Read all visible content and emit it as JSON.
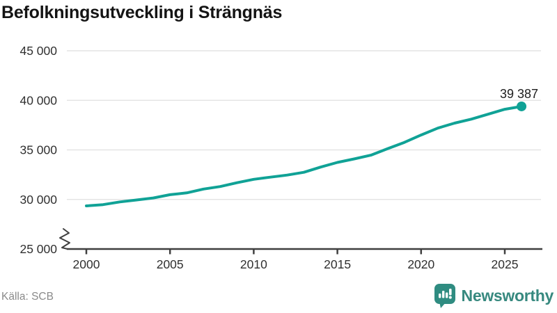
{
  "title": "Befolkningsutveckling i Strängnäs",
  "footer": {
    "source": "Källa: SCB",
    "brand": "Newsworthy",
    "brand_color": "#37897f",
    "brand_icon": "newsworthy-bar-chart-pin"
  },
  "chart_data": {
    "type": "line",
    "title": "Befolkningsutveckling i Strängnäs",
    "series_name": "Befolkning",
    "x": [
      2000,
      2001,
      2002,
      2003,
      2004,
      2005,
      2006,
      2007,
      2008,
      2009,
      2010,
      2011,
      2012,
      2013,
      2014,
      2015,
      2016,
      2017,
      2018,
      2019,
      2020,
      2021,
      2022,
      2023,
      2024,
      2025,
      2026
    ],
    "values": [
      29350,
      29480,
      29750,
      29950,
      30150,
      30480,
      30660,
      31050,
      31300,
      31690,
      32030,
      32250,
      32460,
      32740,
      33270,
      33740,
      34090,
      34470,
      35120,
      35760,
      36500,
      37200,
      37700,
      38100,
      38600,
      39100,
      39387
    ],
    "end_label": "39 387",
    "last_value": 39387,
    "y_ticks": [
      {
        "value": 45000,
        "label": "45 000"
      },
      {
        "value": 40000,
        "label": "40 000"
      },
      {
        "value": 35000,
        "label": "35 000"
      },
      {
        "value": 30000,
        "label": "30 000"
      },
      {
        "value": 25000,
        "label": "25 000"
      }
    ],
    "x_ticks": [
      2000,
      2005,
      2010,
      2015,
      2020,
      2025
    ],
    "ylim": [
      25000,
      45000
    ],
    "xlim": [
      2000,
      2026
    ],
    "axis_break": true,
    "grid": true,
    "legend": "none",
    "xlabel": "",
    "ylabel": "",
    "line_color": "#10a296",
    "grid_color": "#e4e4e4",
    "axis_color": "#3f3f3f",
    "tick_text_color": "#303030",
    "end_label_color": "#1d1d1d"
  }
}
